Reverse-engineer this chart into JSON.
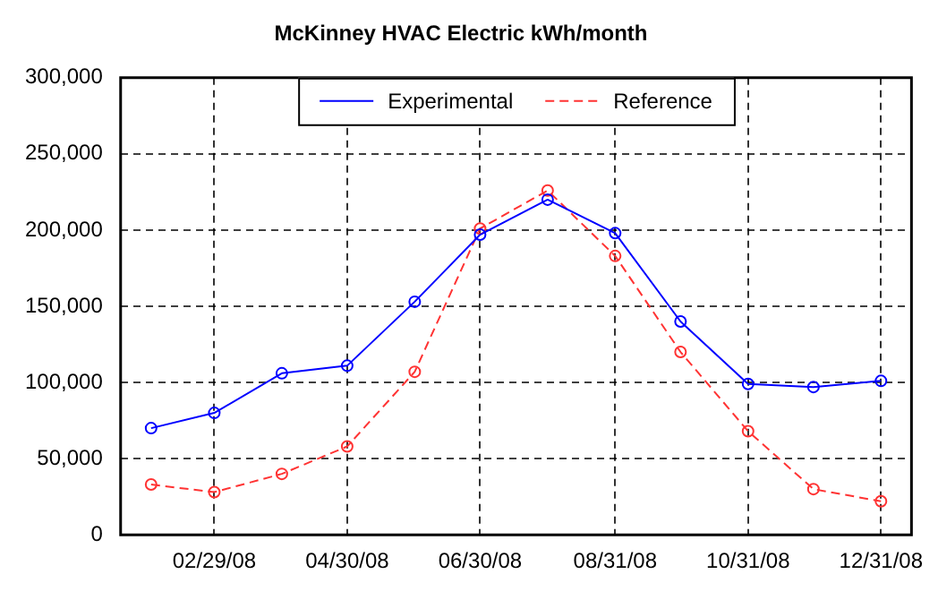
{
  "chart_data": {
    "type": "line",
    "title": "McKinney HVAC Electric kWh/month",
    "x": [
      "2008-01-31",
      "2008-02-29",
      "2008-03-31",
      "2008-04-30",
      "2008-05-31",
      "2008-06-30",
      "2008-07-31",
      "2008-08-31",
      "2008-09-30",
      "2008-10-31",
      "2008-11-30",
      "2008-12-31"
    ],
    "series": [
      {
        "name": "Experimental",
        "color": "#0000ff",
        "line_style": "solid",
        "values": [
          70000,
          80000,
          106000,
          111000,
          153000,
          197000,
          220000,
          198000,
          140000,
          99000,
          97000,
          101000
        ]
      },
      {
        "name": "Reference",
        "color": "#ff3333",
        "line_style": "dashed",
        "values": [
          33000,
          28000,
          40000,
          58000,
          107000,
          201000,
          226000,
          183000,
          120000,
          68000,
          30000,
          22000
        ]
      }
    ],
    "xlim": [
      "2008-01-17",
      "2009-01-14"
    ],
    "xticks": [
      {
        "value": "2008-02-29",
        "label": "02/29/08"
      },
      {
        "value": "2008-04-30",
        "label": "04/30/08"
      },
      {
        "value": "2008-06-30",
        "label": "06/30/08"
      },
      {
        "value": "2008-08-31",
        "label": "08/31/08"
      },
      {
        "value": "2008-10-31",
        "label": "10/31/08"
      },
      {
        "value": "2008-12-31",
        "label": "12/31/08"
      }
    ],
    "ylim": [
      0,
      300000
    ],
    "yticks": [
      0,
      {
        "value": 50000,
        "label": "50,000"
      },
      {
        "value": 100000,
        "label": "100,000"
      },
      {
        "value": 150000,
        "label": "150,000"
      },
      {
        "value": 200000,
        "label": "200,000"
      },
      {
        "value": 250000,
        "label": "250,000"
      },
      {
        "value": 300000,
        "label": "300,000"
      }
    ],
    "grid": true,
    "legend": "top",
    "marker": "circle"
  }
}
